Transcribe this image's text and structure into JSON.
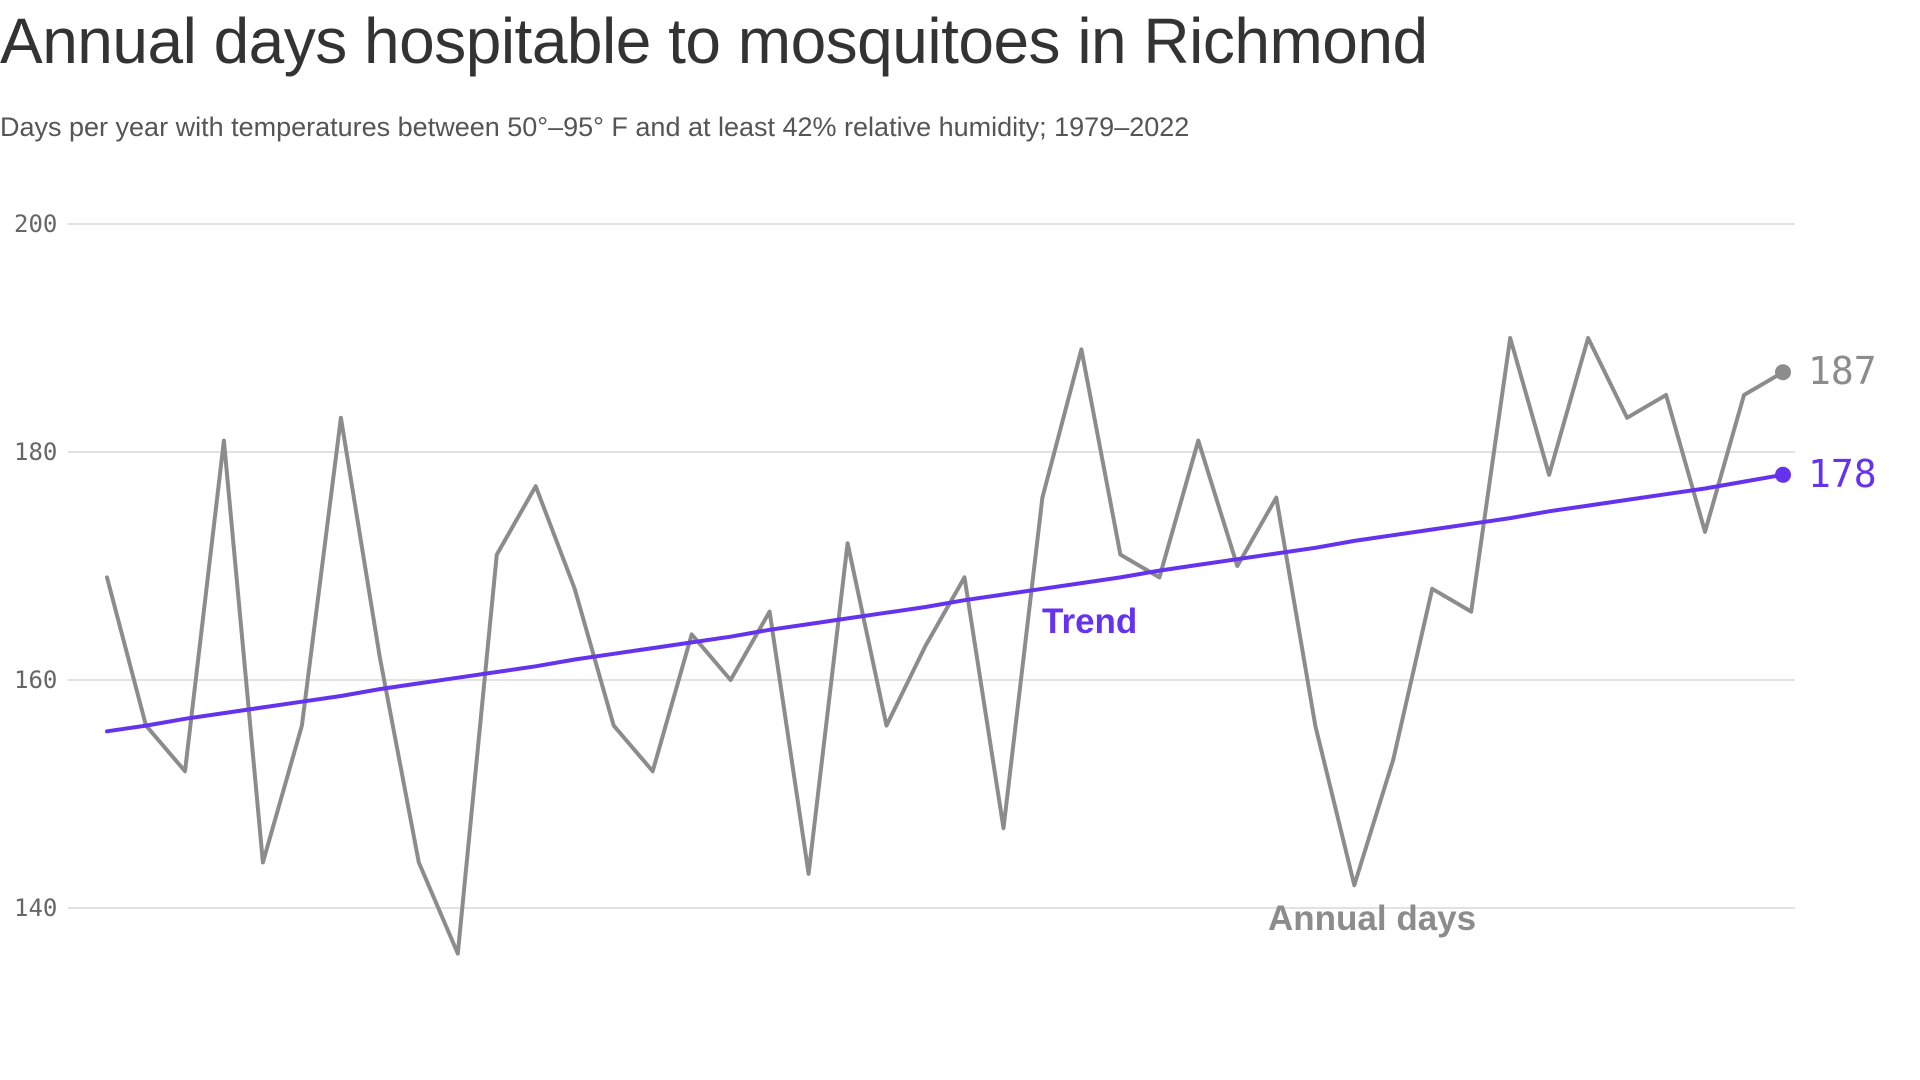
{
  "title": "Annual days hospitable to mosquitoes in Richmond",
  "subtitle": "Days per year with temperatures between 50°–95° F and at least 42% relative humidity; 1979–2022",
  "colors": {
    "annual": "#8c8c8c",
    "trend": "#6533ee",
    "grid": "#d9d9d9",
    "text": "#333333"
  },
  "chart_data": {
    "type": "line",
    "ylim": [
      140,
      200
    ],
    "y_ticks": [
      140,
      160,
      180,
      200
    ],
    "y_tick_labels": [
      "140",
      "160",
      "180",
      "200"
    ],
    "xlim": [
      1979,
      2022
    ],
    "grid": true,
    "x": [
      1979,
      1980,
      1981,
      1982,
      1983,
      1984,
      1985,
      1986,
      1987,
      1988,
      1989,
      1990,
      1991,
      1992,
      1993,
      1994,
      1995,
      1996,
      1997,
      1998,
      1999,
      2000,
      2001,
      2002,
      2003,
      2004,
      2005,
      2006,
      2007,
      2008,
      2009,
      2010,
      2011,
      2012,
      2013,
      2014,
      2015,
      2016,
      2017,
      2018,
      2019,
      2020,
      2021,
      2022
    ],
    "series": [
      {
        "name": "Annual days",
        "values": [
          169,
          156,
          152,
          181,
          144,
          156,
          183,
          162,
          144,
          136,
          171,
          177,
          168,
          156,
          152,
          164,
          160,
          166,
          143,
          172,
          156,
          163,
          169,
          147,
          176,
          189,
          171,
          169,
          181,
          170,
          176,
          156,
          142,
          153,
          168,
          166,
          190,
          178,
          190,
          183,
          185,
          173,
          185,
          187
        ],
        "end_value_label": "187"
      },
      {
        "name": "Trend",
        "values": [
          155.5,
          156.0,
          156.6,
          157.1,
          157.6,
          158.1,
          158.6,
          159.2,
          159.7,
          160.2,
          160.7,
          161.2,
          161.8,
          162.3,
          162.8,
          163.3,
          163.8,
          164.4,
          164.9,
          165.4,
          165.9,
          166.4,
          167.0,
          167.5,
          168.0,
          168.5,
          169.0,
          169.6,
          170.1,
          170.6,
          171.1,
          171.6,
          172.2,
          172.7,
          173.2,
          173.7,
          174.2,
          174.8,
          175.3,
          175.8,
          176.3,
          176.8,
          177.4,
          178.0
        ],
        "end_value_label": "178"
      }
    ]
  }
}
